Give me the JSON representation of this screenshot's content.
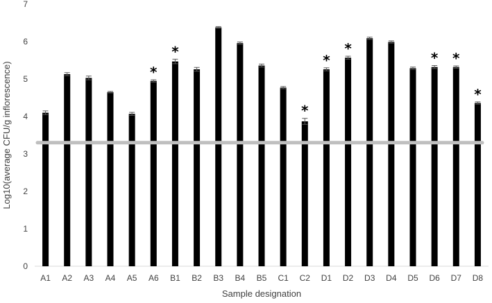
{
  "chart_data": {
    "type": "bar",
    "xlabel": "Sample designation",
    "ylabel": "Log10(average CFU/g inflorescence)",
    "ylim": [
      0,
      7
    ],
    "yticks": [
      "0",
      "1",
      "2",
      "3",
      "4",
      "5",
      "6",
      "7"
    ],
    "grid": false,
    "categories": [
      "A1",
      "A2",
      "A3",
      "A4",
      "A5",
      "A6",
      "B1",
      "B2",
      "B3",
      "B4",
      "B5",
      "C1",
      "C2",
      "D1",
      "D2",
      "D3",
      "D4",
      "D5",
      "D6",
      "D7",
      "D8"
    ],
    "values": [
      4.1,
      5.13,
      5.03,
      4.65,
      4.07,
      4.95,
      5.47,
      5.26,
      6.38,
      5.96,
      5.36,
      4.77,
      3.87,
      5.26,
      5.57,
      6.09,
      5.99,
      5.29,
      5.32,
      5.32,
      4.36
    ],
    "errors": [
      0.05,
      0.04,
      0.05,
      0.02,
      0.04,
      0.03,
      0.06,
      0.05,
      0.02,
      0.03,
      0.04,
      0.03,
      0.08,
      0.04,
      0.04,
      0.03,
      0.03,
      0.03,
      0.04,
      0.03,
      0.03
    ],
    "significance_marker": "*",
    "significant": [
      false,
      false,
      false,
      false,
      false,
      true,
      true,
      false,
      false,
      false,
      false,
      false,
      true,
      true,
      true,
      false,
      false,
      false,
      true,
      true,
      true
    ],
    "reference_line": 3.3,
    "bar_color": "#000000",
    "reference_line_color": "#bfbfbf",
    "axis_color": "#d9d9d9"
  }
}
